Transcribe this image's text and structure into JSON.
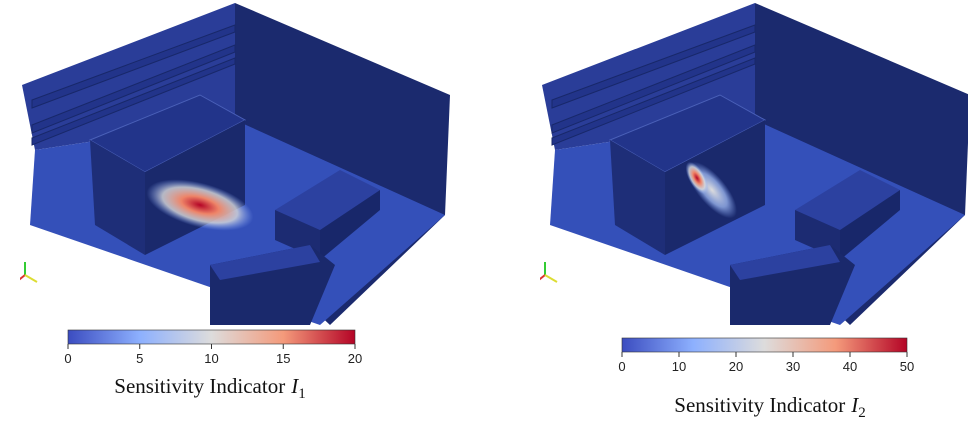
{
  "panels": [
    {
      "colorbar": {
        "range": [
          0,
          20
        ],
        "ticks": [
          0,
          5,
          10,
          15,
          20
        ]
      },
      "label": {
        "text": "Sensitivity Indicator",
        "symbol": "I",
        "subscript": "1"
      }
    },
    {
      "colorbar": {
        "range": [
          0,
          50
        ],
        "ticks": [
          0,
          10,
          20,
          30,
          40,
          50
        ]
      },
      "label": {
        "text": "Sensitivity Indicator",
        "symbol": "I",
        "subscript": "2"
      }
    }
  ]
}
